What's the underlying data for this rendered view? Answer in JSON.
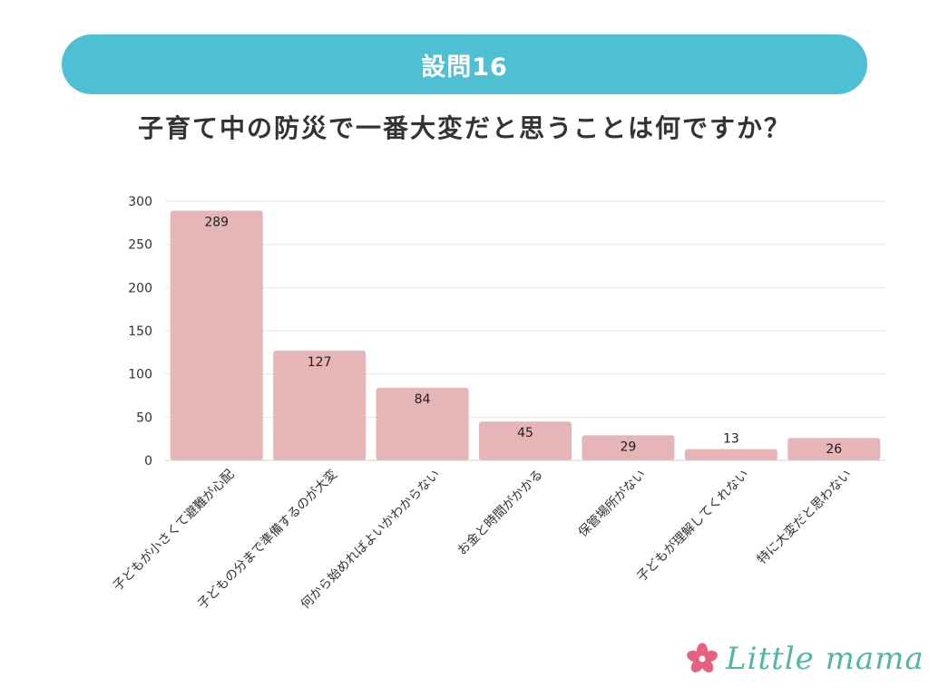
{
  "header": {
    "question_number": "設問16",
    "question_text": "子育て中の防災で一番大変だと思うことは何ですか？"
  },
  "logo": {
    "icon": "flower-icon",
    "text": "Little mama",
    "color": "#4fb8a6",
    "flower_color": "#e8607e"
  },
  "colors": {
    "banner": "#4fc0d4",
    "bar": "#e5b5b8",
    "grid": "#e6e6e6"
  },
  "chart_data": {
    "type": "bar",
    "title": "子育て中の防災で一番大変だと思うことは何ですか？",
    "xlabel": "",
    "ylabel": "",
    "ylim": [
      0,
      300
    ],
    "yticks": [
      0,
      50,
      100,
      150,
      200,
      250,
      300
    ],
    "grid": true,
    "categories": [
      "子どもが小さくて避難が心配",
      "子どもの分まで準備するのが大変",
      "何から始めればよいかわからない",
      "お金と時間がかかる",
      "保管場所がない",
      "子どもが理解してくれない",
      "特に大変だと思わない"
    ],
    "values": [
      289,
      127,
      84,
      45,
      29,
      13,
      26
    ]
  }
}
